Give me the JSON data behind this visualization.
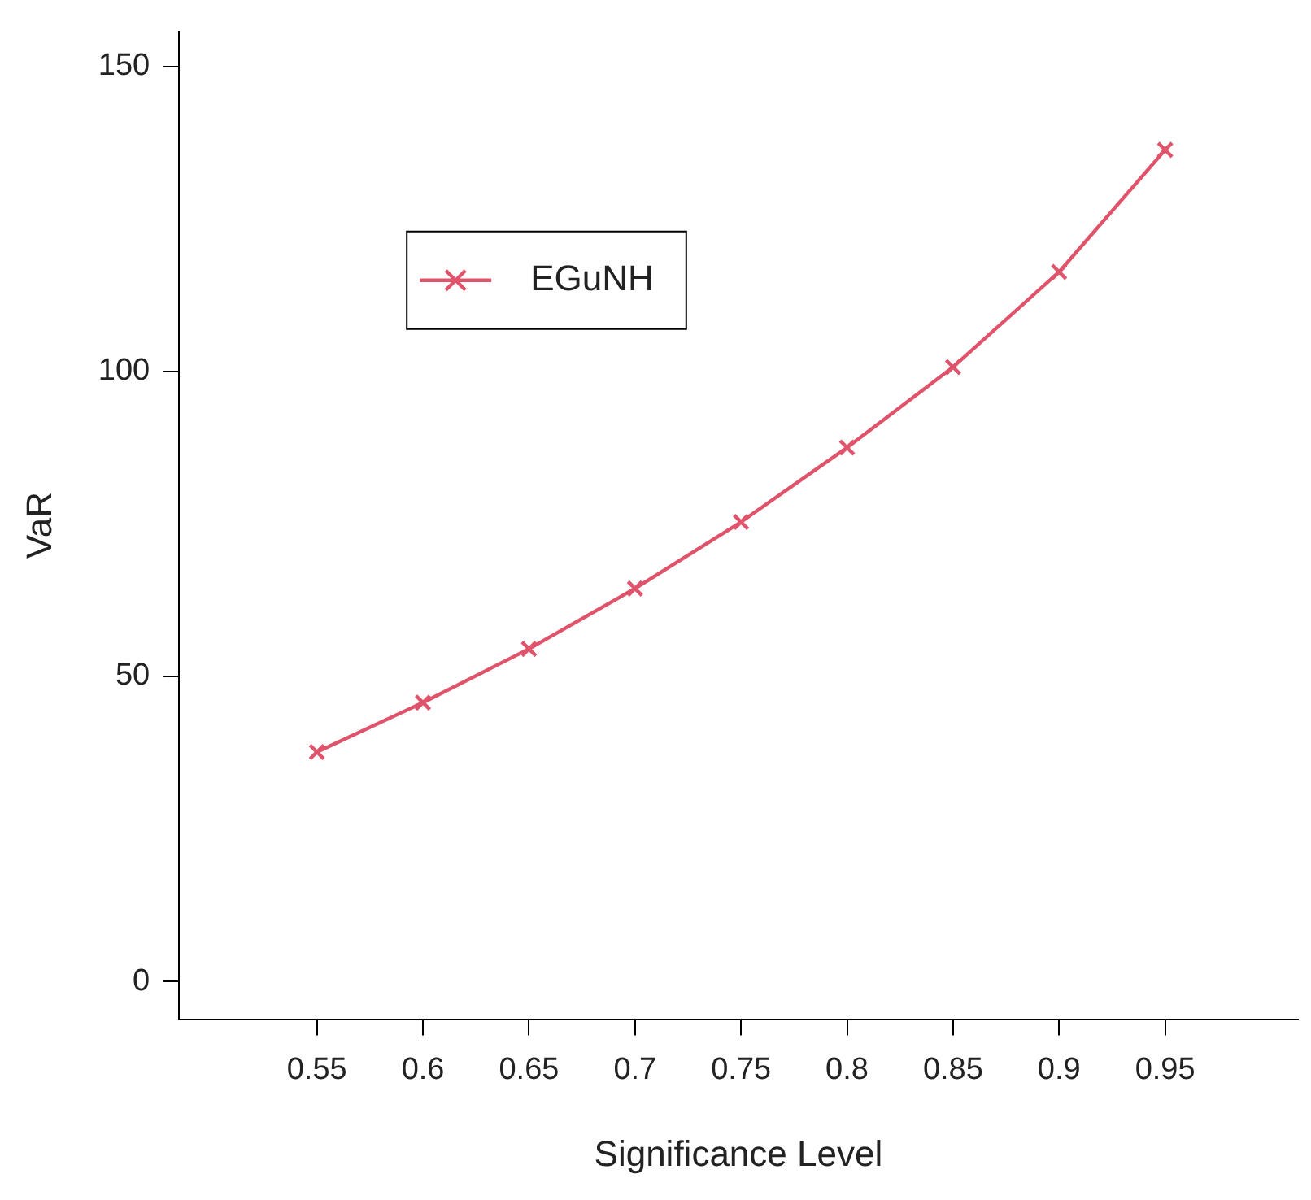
{
  "chart_data": {
    "type": "line",
    "xlabel": "Significance Level",
    "ylabel": "VaR",
    "x": [
      0.55,
      0.6,
      0.65,
      0.7,
      0.75,
      0.8,
      0.85,
      0.9,
      0.95
    ],
    "series": [
      {
        "name": "EGuNH",
        "color": "#df536b",
        "values": [
          37.6,
          45.7,
          54.5,
          64.4,
          75.3,
          87.5,
          100.7,
          116.3,
          136.3
        ]
      }
    ],
    "xlim": [
      0.485,
      1.0125
    ],
    "xticks": [
      0.55,
      0.6,
      0.65,
      0.7,
      0.75,
      0.8,
      0.85,
      0.9,
      0.95
    ],
    "ylim": [
      -6.2,
      155.7
    ],
    "yticks": [
      0,
      50,
      100,
      150
    ],
    "grid": false,
    "legend": "top left",
    "marker": "cross",
    "line_style": "solid"
  }
}
